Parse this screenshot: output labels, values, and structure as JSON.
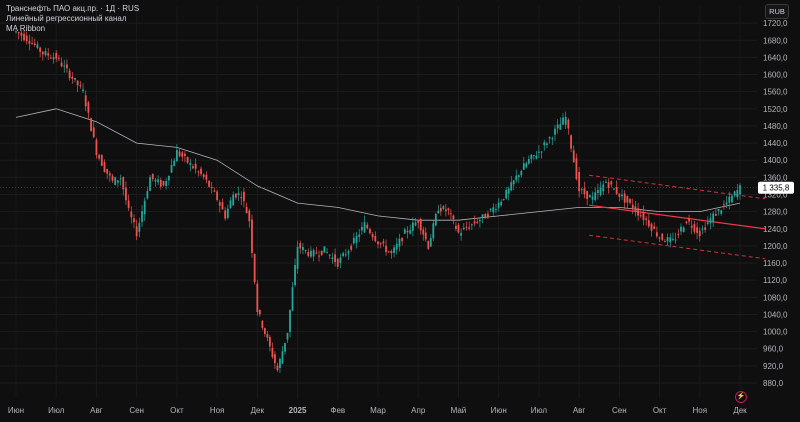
{
  "legend": {
    "line1": "Транснефть ПАО акц.пр. · 1Д · RUS",
    "line2": "Линейный регрессионный канал",
    "line3": "MA Ribbon"
  },
  "currency_button": "RUB",
  "colors": {
    "background": "#0f0f0f",
    "up": "#26a69a",
    "down": "#ef5350",
    "regression_line": "#f23645",
    "ma_line": "#d1d4dc",
    "last_price_badge": "#ffffff"
  },
  "chart_data": {
    "type": "candlestick",
    "title": "Транснефть ПАО акц.пр. · 1Д · RUS",
    "yaxis": {
      "ticks": [
        880,
        920,
        960,
        1000,
        1040,
        1080,
        1120,
        1160,
        1200,
        1240,
        1280,
        1320,
        1360,
        1400,
        1440,
        1480,
        1520,
        1560,
        1600,
        1640,
        1680,
        1720
      ],
      "tick_labels": [
        "880,0",
        "920,0",
        "960,0",
        "1000,0",
        "1040,0",
        "1080,0",
        "1120,0",
        "1160,0",
        "1200,0",
        "1240,0",
        "1280,0",
        "1320,0",
        "1360,0",
        "1400,0",
        "1440,0",
        "1480,0",
        "1520,0",
        "1560,0",
        "1600,0",
        "1640,0",
        "1680,0",
        "1720,0"
      ],
      "range": [
        845,
        1760
      ]
    },
    "xaxis": {
      "labels": [
        "Июн",
        "Июл",
        "Авг",
        "Сен",
        "Окт",
        "Ноя",
        "Дек",
        "2025",
        "Фев",
        "Мар",
        "Апр",
        "Май",
        "Июн",
        "Июл",
        "Авг",
        "Сен",
        "Окт",
        "Ноя",
        "Дек"
      ]
    },
    "last_price": 1335.8,
    "last_price_label": "1 335,8",
    "price_path": [
      [
        "Июн",
        1700
      ],
      [
        "Июн",
        1680
      ],
      [
        "Июн",
        1650
      ],
      [
        "Июл",
        1640
      ],
      [
        "Июл",
        1600
      ],
      [
        "Июл",
        1560
      ],
      [
        "Авг",
        1420
      ],
      [
        "Авг",
        1380
      ],
      [
        "Авг",
        1350
      ],
      [
        "Авг",
        1360
      ],
      [
        "Авг",
        1280
      ],
      [
        "Сен",
        1230
      ],
      [
        "Сен",
        1360
      ],
      [
        "Сен",
        1340
      ],
      [
        "Окт",
        1420
      ],
      [
        "Окт",
        1390
      ],
      [
        "Окт",
        1360
      ],
      [
        "Ноя",
        1310
      ],
      [
        "Ноя",
        1270
      ],
      [
        "Ноя",
        1320
      ],
      [
        "Ноя",
        1320
      ],
      [
        "Ноя",
        1260
      ],
      [
        "Дек",
        1050
      ],
      [
        "Дек",
        980
      ],
      [
        "Дек",
        910
      ],
      [
        "Дек",
        1000
      ],
      [
        "2025",
        1200
      ],
      [
        "2025",
        1180
      ],
      [
        "2025",
        1190
      ],
      [
        "Фев",
        1160
      ],
      [
        "Фев",
        1200
      ],
      [
        "Фев",
        1250
      ],
      [
        "Мар",
        1210
      ],
      [
        "Мар",
        1180
      ],
      [
        "Мар",
        1230
      ],
      [
        "Апр",
        1260
      ],
      [
        "Апр",
        1200
      ],
      [
        "Апр",
        1290
      ],
      [
        "Апр",
        1280
      ],
      [
        "Май",
        1230
      ],
      [
        "Май",
        1250
      ],
      [
        "Май",
        1270
      ],
      [
        "Июн",
        1300
      ],
      [
        "Июн",
        1330
      ],
      [
        "Июн",
        1370
      ],
      [
        "Июн",
        1400
      ],
      [
        "Июл",
        1420
      ],
      [
        "Июл",
        1460
      ],
      [
        "Июл",
        1500
      ],
      [
        "Авг",
        1330
      ],
      [
        "Авг",
        1310
      ],
      [
        "Авг",
        1350
      ],
      [
        "Сен",
        1320
      ],
      [
        "Сен",
        1290
      ],
      [
        "Сен",
        1260
      ],
      [
        "Окт",
        1220
      ],
      [
        "Окт",
        1210
      ],
      [
        "Окт",
        1260
      ],
      [
        "Ноя",
        1230
      ],
      [
        "Ноя",
        1270
      ],
      [
        "Ноя",
        1300
      ],
      [
        "Дек",
        1335.8
      ]
    ],
    "ma_path": [
      [
        "Июн",
        1500
      ],
      [
        "Июл",
        1520
      ],
      [
        "Авг",
        1490
      ],
      [
        "Сен",
        1440
      ],
      [
        "Окт",
        1430
      ],
      [
        "Ноя",
        1400
      ],
      [
        "Дек",
        1340
      ],
      [
        "2025",
        1300
      ],
      [
        "Фев",
        1290
      ],
      [
        "Мар",
        1270
      ],
      [
        "Апр",
        1260
      ],
      [
        "Май",
        1260
      ],
      [
        "Июн",
        1270
      ],
      [
        "Июл",
        1280
      ],
      [
        "Авг",
        1290
      ],
      [
        "Сен",
        1290
      ],
      [
        "Окт",
        1280
      ],
      [
        "Ноя",
        1280
      ],
      [
        "Дек",
        1300
      ]
    ],
    "regression_channel": {
      "start": [
        "Авг",
        1295
      ],
      "end": [
        "Дек",
        1240
      ],
      "upper_offset": 70,
      "lower_offset": 70
    }
  }
}
